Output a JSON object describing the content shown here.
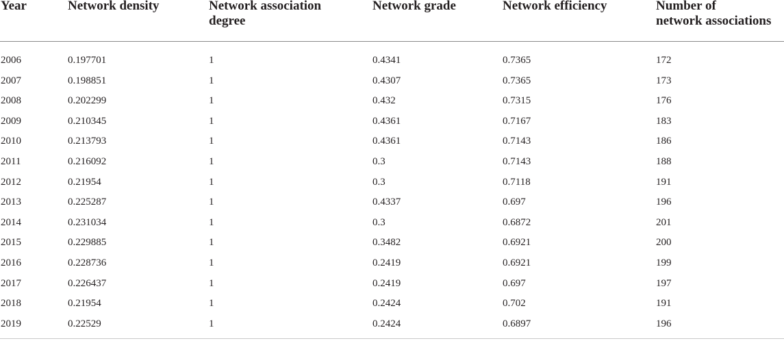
{
  "table": {
    "headers": [
      "Year",
      "Network density",
      "Network association\ndegree",
      "Network grade",
      "Network efficiency",
      "Number of\nnetwork associations"
    ],
    "rows": [
      [
        "2006",
        "0.197701",
        "1",
        "0.4341",
        "0.7365",
        "172"
      ],
      [
        "2007",
        "0.198851",
        "1",
        "0.4307",
        "0.7365",
        "173"
      ],
      [
        "2008",
        "0.202299",
        "1",
        "0.432",
        "0.7315",
        "176"
      ],
      [
        "2009",
        "0.210345",
        "1",
        "0.4361",
        "0.7167",
        "183"
      ],
      [
        "2010",
        "0.213793",
        "1",
        "0.4361",
        "0.7143",
        "186"
      ],
      [
        "2011",
        "0.216092",
        "1",
        "0.3",
        "0.7143",
        "188"
      ],
      [
        "2012",
        "0.21954",
        "1",
        "0.3",
        "0.7118",
        "191"
      ],
      [
        "2013",
        "0.225287",
        "1",
        "0.4337",
        "0.697",
        "196"
      ],
      [
        "2014",
        "0.231034",
        "1",
        "0.3",
        "0.6872",
        "201"
      ],
      [
        "2015",
        "0.229885",
        "1",
        "0.3482",
        "0.6921",
        "200"
      ],
      [
        "2016",
        "0.228736",
        "1",
        "0.2419",
        "0.6921",
        "199"
      ],
      [
        "2017",
        "0.226437",
        "1",
        "0.2419",
        "0.697",
        "197"
      ],
      [
        "2018",
        "0.21954",
        "1",
        "0.2424",
        "0.702",
        "191"
      ],
      [
        "2019",
        "0.22529",
        "1",
        "0.2424",
        "0.6897",
        "196"
      ]
    ]
  }
}
